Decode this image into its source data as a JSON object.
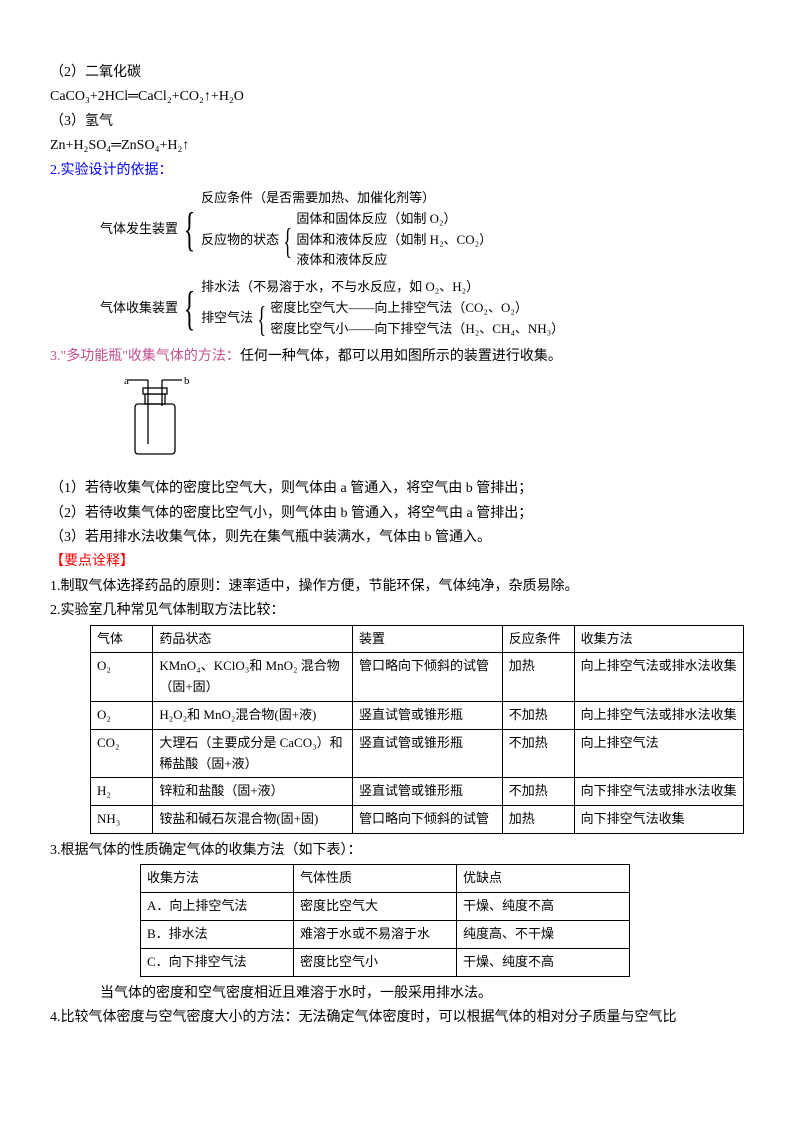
{
  "chem_items": [
    {
      "label": "（2）二氧化碳",
      "eq": "CaCO₃+2HCl═CaCl₂+CO₂↑+H₂O"
    },
    {
      "label": "（3）氢气",
      "eq": "Zn+H₂SO₄═ZnSO₄+H₂↑"
    }
  ],
  "section2": {
    "prefix": "2.",
    "title": "实验设计的依据：",
    "gen": {
      "label": "气体发生装置",
      "b1": "反应条件（是否需要加热、加催化剂等）",
      "b2": "反应物的状态",
      "sub": [
        "固体和固体反应（如制 O₂）",
        "固体和液体反应（如制 H₂、CO₂）",
        "液体和液体反应"
      ]
    },
    "col": {
      "label": "气体收集装置",
      "b1": "排水法（不易溶于水，不与水反应，如 O₂、H₂）",
      "b2": "排空气法",
      "sub": [
        "密度比空气大——向上排空气法（CO₂、O₂）",
        "密度比空气小——向下排空气法（H₂、CH₄、NH₃）"
      ]
    }
  },
  "section3": {
    "prefix": "3.",
    "title": "\"多功能瓶\"收集气体的方法：",
    "body": "任何一种气体，都可以用如图所示的装置进行收集。",
    "cases": [
      "（1）若待收集气体的密度比空气大，则气体由 a 管通入，将空气由 b 管排出；",
      "（2）若待收集气体的密度比空气小，则气体由 b 管通入，将空气由 a 管排出；",
      "（3）若用排水法收集气体，则先在集气瓶中装满水，气体由 b 管通入。"
    ]
  },
  "yaodian": "【要点诠释】",
  "yd1": "1.制取气体选择药品的原则：速率适中，操作方便，节能环保，气体纯净，杂质易除。",
  "yd2": "2.实验室几种常见气体制取方法比较：",
  "table1": {
    "headers": [
      "气体",
      "药品状态",
      "装置",
      "反应条件",
      "收集方法"
    ],
    "rows": [
      [
        "O₂",
        "KMnO₄、KClO₃和 MnO₂ 混合物（固+固）",
        "管口略向下倾斜的试管",
        "加热",
        "向上排空气法或排水法收集"
      ],
      [
        "O₂",
        "H₂O₂和 MnO₂混合物(固+液)",
        "竖直试管或锥形瓶",
        "不加热",
        "向上排空气法或排水法收集"
      ],
      [
        "CO₂",
        "大理石（主要成分是 CaCO₃）和稀盐酸（固+液）",
        "竖直试管或锥形瓶",
        "不加热",
        "向上排空气法"
      ],
      [
        "H₂",
        "锌粒和盐酸（固+液）",
        "竖直试管或锥形瓶",
        "不加热",
        "向下排空气法或排水法收集"
      ],
      [
        "NH₃",
        "铵盐和碱石灰混合物(固+固)",
        "管口略向下倾斜的试管",
        "加热",
        "向下排空气法收集"
      ]
    ],
    "widths": [
      50,
      190,
      140,
      60,
      160
    ]
  },
  "yd3": "3.根据气体的性质确定气体的收集方法（如下表）：",
  "table2": {
    "headers": [
      "收集方法",
      "气体性质",
      "优缺点"
    ],
    "rows": [
      [
        "A．向上排空气法",
        "密度比空气大",
        "干燥、纯度不高"
      ],
      [
        "B．排水法",
        "难溶于水或不易溶于水",
        "纯度高、不干燥"
      ],
      [
        "C．向下排空气法",
        "密度比空气小",
        "干燥、纯度不高"
      ]
    ],
    "widths": [
      140,
      150,
      160
    ]
  },
  "yd3_after": "当气体的密度和空气密度相近且难溶于水时，一般采用排水法。",
  "yd4": "4.比较气体密度与空气密度大小的方法：无法确定气体密度时，可以根据气体的相对分子质量与空气比",
  "bottle": {
    "label_a": "a",
    "label_b": "b",
    "stroke": "#000000"
  }
}
